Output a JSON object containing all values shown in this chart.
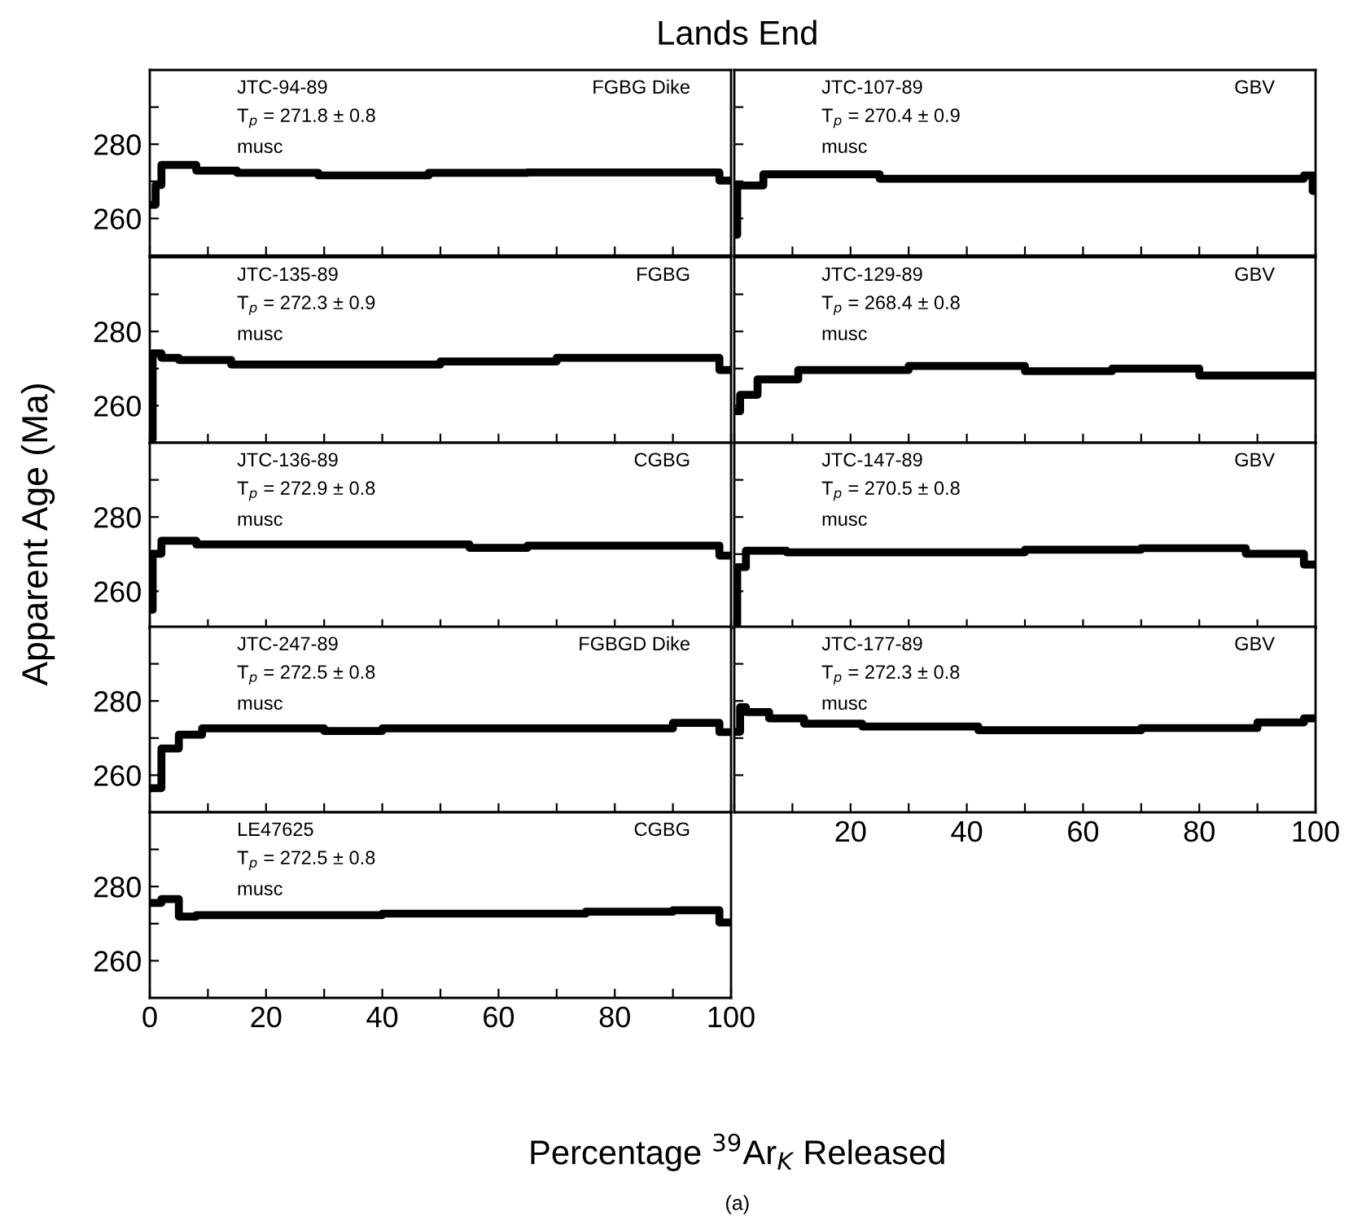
{
  "chart_data": [
    {
      "type": "step",
      "title": "Lands End",
      "ylabel": "Apparent Age (Ma)",
      "annotations": [
        "JTC-94-89",
        "T$_{p}$ = 271.8 ± 0.8",
        "musc",
        "FGBG Dike"
      ],
      "tick_labels": "y",
      "x": [
        0,
        1,
        2,
        8,
        15,
        29,
        48,
        65,
        98,
        100
      ],
      "values": [
        263.7,
        269,
        274.4,
        272.9,
        272.3,
        271.6,
        272.3,
        272.4,
        270.2,
        270.2
      ],
      "color": "#000000",
      "xlim": [
        0,
        100
      ],
      "xticks": [
        {
          "value": 0,
          "label": null
        },
        {
          "value": 10,
          "label": null
        },
        {
          "value": 20,
          "label": null
        },
        {
          "value": 30,
          "label": null
        },
        {
          "value": 40,
          "label": null
        },
        {
          "value": 50,
          "label": null
        },
        {
          "value": 60,
          "label": null
        },
        {
          "value": 70,
          "label": null
        },
        {
          "value": 80,
          "label": null
        },
        {
          "value": 90,
          "label": null
        },
        {
          "value": 100,
          "label": null
        }
      ],
      "ylim": [
        250,
        300
      ],
      "yticks": [
        {
          "value": 260,
          "label": "260"
        },
        {
          "value": 270,
          "label": null
        },
        {
          "value": 280,
          "label": "280"
        },
        {
          "value": 290,
          "label": null
        }
      ]
    },
    {
      "type": "step",
      "annotations": [
        "JTC-107-89",
        "T$_{p}$ = 270.4 ± 0.9",
        "musc",
        "GBV"
      ],
      "tick_labels": false,
      "x": [
        0,
        0.5,
        5,
        25,
        98,
        99.5,
        100
      ],
      "values": [
        255.6,
        268.9,
        271.9,
        270.7,
        271.6,
        267.4,
        267.4
      ],
      "color": "#000000",
      "xlim": [
        0,
        100
      ],
      "xticks": [
        {
          "value": 0,
          "label": null
        },
        {
          "value": 10,
          "label": null
        },
        {
          "value": 20,
          "label": null
        },
        {
          "value": 30,
          "label": null
        },
        {
          "value": 40,
          "label": null
        },
        {
          "value": 50,
          "label": null
        },
        {
          "value": 60,
          "label": null
        },
        {
          "value": 70,
          "label": null
        },
        {
          "value": 80,
          "label": null
        },
        {
          "value": 90,
          "label": null
        },
        {
          "value": 100,
          "label": null
        }
      ],
      "ylim": [
        250,
        300
      ],
      "yticks": [
        {
          "value": 260,
          "label": null
        },
        {
          "value": 270,
          "label": null
        },
        {
          "value": 280,
          "label": null
        },
        {
          "value": 290,
          "label": null
        }
      ]
    },
    {
      "type": "step",
      "annotations": [
        "JTC-135-89",
        "T$_{p}$ = 272.3 ± 0.9",
        "musc",
        "FGBG"
      ],
      "tick_labels": "y",
      "x": [
        0,
        0.5,
        2,
        5,
        14,
        50,
        70,
        98,
        100
      ],
      "values": [
        251,
        274.1,
        272.9,
        272.3,
        271.1,
        271.9,
        272.9,
        269.6,
        269.6
      ],
      "color": "#000000",
      "xlim": [
        0,
        100
      ],
      "xticks": [
        {
          "value": 0,
          "label": null
        },
        {
          "value": 10,
          "label": null
        },
        {
          "value": 20,
          "label": null
        },
        {
          "value": 30,
          "label": null
        },
        {
          "value": 40,
          "label": null
        },
        {
          "value": 50,
          "label": null
        },
        {
          "value": 60,
          "label": null
        },
        {
          "value": 70,
          "label": null
        },
        {
          "value": 80,
          "label": null
        },
        {
          "value": 90,
          "label": null
        },
        {
          "value": 100,
          "label": null
        }
      ],
      "ylim": [
        250,
        300
      ],
      "yticks": [
        {
          "value": 260,
          "label": "260"
        },
        {
          "value": 270,
          "label": null
        },
        {
          "value": 280,
          "label": "280"
        },
        {
          "value": 290,
          "label": null
        }
      ]
    },
    {
      "type": "step",
      "annotations": [
        "JTC-129-89",
        "T$_{p}$ = 268.4 ± 0.8",
        "musc",
        "GBV"
      ],
      "tick_labels": false,
      "x": [
        0,
        1,
        4,
        11,
        30,
        50,
        65,
        80,
        100
      ],
      "values": [
        258.5,
        262.9,
        267.1,
        269.6,
        270.7,
        269.3,
        270,
        268.1,
        268.1
      ],
      "color": "#000000",
      "xlim": [
        0,
        100
      ],
      "xticks": [
        {
          "value": 0,
          "label": null
        },
        {
          "value": 10,
          "label": null
        },
        {
          "value": 20,
          "label": null
        },
        {
          "value": 30,
          "label": null
        },
        {
          "value": 40,
          "label": null
        },
        {
          "value": 50,
          "label": null
        },
        {
          "value": 60,
          "label": null
        },
        {
          "value": 70,
          "label": null
        },
        {
          "value": 80,
          "label": null
        },
        {
          "value": 90,
          "label": null
        },
        {
          "value": 100,
          "label": null
        }
      ],
      "ylim": [
        250,
        300
      ],
      "yticks": [
        {
          "value": 260,
          "label": null
        },
        {
          "value": 270,
          "label": null
        },
        {
          "value": 280,
          "label": null
        },
        {
          "value": 290,
          "label": null
        }
      ]
    },
    {
      "type": "step",
      "annotations": [
        "JTC-136-89",
        "T$_{p}$ = 272.9 ± 0.8",
        "musc",
        "CGBG"
      ],
      "tick_labels": "y",
      "x": [
        0,
        0.5,
        2,
        8,
        55,
        65,
        98,
        100
      ],
      "values": [
        255,
        270.1,
        273.6,
        272.6,
        271.7,
        272.3,
        269.6,
        269.6
      ],
      "color": "#000000",
      "xlim": [
        0,
        100
      ],
      "xticks": [
        {
          "value": 0,
          "label": null
        },
        {
          "value": 10,
          "label": null
        },
        {
          "value": 20,
          "label": null
        },
        {
          "value": 30,
          "label": null
        },
        {
          "value": 40,
          "label": null
        },
        {
          "value": 50,
          "label": null
        },
        {
          "value": 60,
          "label": null
        },
        {
          "value": 70,
          "label": null
        },
        {
          "value": 80,
          "label": null
        },
        {
          "value": 90,
          "label": null
        },
        {
          "value": 100,
          "label": null
        }
      ],
      "ylim": [
        250,
        300
      ],
      "yticks": [
        {
          "value": 260,
          "label": "260"
        },
        {
          "value": 270,
          "label": null
        },
        {
          "value": 280,
          "label": "280"
        },
        {
          "value": 290,
          "label": null
        }
      ]
    },
    {
      "type": "step",
      "annotations": [
        "JTC-147-89",
        "T$_{p}$ = 270.5 ± 0.8",
        "musc",
        "GBV"
      ],
      "tick_labels": false,
      "x": [
        0,
        0.5,
        2,
        9,
        50,
        70,
        88,
        98,
        100
      ],
      "values": [
        251,
        266.5,
        270.9,
        270.5,
        271.2,
        271.6,
        270.1,
        267.2,
        267.2
      ],
      "color": "#000000",
      "xlim": [
        0,
        100
      ],
      "xticks": [
        {
          "value": 0,
          "label": null
        },
        {
          "value": 10,
          "label": null
        },
        {
          "value": 20,
          "label": null
        },
        {
          "value": 30,
          "label": null
        },
        {
          "value": 40,
          "label": null
        },
        {
          "value": 50,
          "label": null
        },
        {
          "value": 60,
          "label": null
        },
        {
          "value": 70,
          "label": null
        },
        {
          "value": 80,
          "label": null
        },
        {
          "value": 90,
          "label": null
        },
        {
          "value": 100,
          "label": null
        }
      ],
      "ylim": [
        250,
        300
      ],
      "yticks": [
        {
          "value": 260,
          "label": null
        },
        {
          "value": 270,
          "label": null
        },
        {
          "value": 280,
          "label": null
        },
        {
          "value": 290,
          "label": null
        }
      ]
    },
    {
      "type": "step",
      "annotations": [
        "JTC-247-89",
        "T$_{p}$ = 272.5 ± 0.8",
        "musc",
        "FGBGD Dike"
      ],
      "tick_labels": "y",
      "x": [
        0,
        2,
        5,
        9,
        30,
        40,
        90,
        98,
        100
      ],
      "values": [
        256.5,
        267.2,
        270.9,
        272.6,
        271.9,
        272.6,
        274.1,
        271.6,
        271.6
      ],
      "color": "#000000",
      "xlim": [
        0,
        100
      ],
      "xticks": [
        {
          "value": 0,
          "label": null
        },
        {
          "value": 10,
          "label": null
        },
        {
          "value": 20,
          "label": null
        },
        {
          "value": 30,
          "label": null
        },
        {
          "value": 40,
          "label": null
        },
        {
          "value": 50,
          "label": null
        },
        {
          "value": 60,
          "label": null
        },
        {
          "value": 70,
          "label": null
        },
        {
          "value": 80,
          "label": null
        },
        {
          "value": 90,
          "label": null
        },
        {
          "value": 100,
          "label": null
        }
      ],
      "ylim": [
        250,
        300
      ],
      "yticks": [
        {
          "value": 260,
          "label": "260"
        },
        {
          "value": 270,
          "label": null
        },
        {
          "value": 280,
          "label": "280"
        },
        {
          "value": 290,
          "label": null
        }
      ]
    },
    {
      "type": "step",
      "annotations": [
        "JTC-177-89",
        "T$_{p}$ = 272.3 ± 0.8",
        "musc",
        "GBV"
      ],
      "tick_labels": "x",
      "x": [
        0,
        1,
        2,
        6,
        12,
        22,
        42,
        70,
        90,
        98,
        100
      ],
      "values": [
        271.7,
        278.3,
        277,
        275.3,
        273.9,
        273.1,
        272.1,
        272.7,
        274.2,
        275.3,
        275.3
      ],
      "color": "#000000",
      "xlim": [
        0,
        100
      ],
      "xticks": [
        {
          "value": 0,
          "label": null
        },
        {
          "value": 10,
          "label": null
        },
        {
          "value": 20,
          "label": "20"
        },
        {
          "value": 30,
          "label": null
        },
        {
          "value": 40,
          "label": "40"
        },
        {
          "value": 50,
          "label": null
        },
        {
          "value": 60,
          "label": "60"
        },
        {
          "value": 70,
          "label": null
        },
        {
          "value": 80,
          "label": "80"
        },
        {
          "value": 90,
          "label": null
        },
        {
          "value": 100,
          "label": "100"
        }
      ],
      "ylim": [
        250,
        300
      ],
      "yticks": [
        {
          "value": 260,
          "label": null
        },
        {
          "value": 270,
          "label": null
        },
        {
          "value": 280,
          "label": null
        },
        {
          "value": 290,
          "label": null
        }
      ]
    },
    {
      "type": "step",
      "xlabel": "Percentage $^{39}$Ar$_{K}$ Released",
      "annotations": [
        "LE47625",
        "T$_{p}$ = 272.5 ± 0.8",
        "musc",
        "CGBG",
        "(a)"
      ],
      "x": [
        0,
        2,
        5,
        8,
        40,
        75,
        90,
        98,
        100
      ],
      "values": [
        275.6,
        276.6,
        271.9,
        272.3,
        272.7,
        273.2,
        273.6,
        270.3,
        270.3
      ],
      "color": "#000000",
      "xlim": [
        0,
        100
      ],
      "xticks": [
        {
          "value": 0,
          "label": "0"
        },
        {
          "value": 10,
          "label": null
        },
        {
          "value": 20,
          "label": "20"
        },
        {
          "value": 30,
          "label": null
        },
        {
          "value": 40,
          "label": "40"
        },
        {
          "value": 50,
          "label": null
        },
        {
          "value": 60,
          "label": "60"
        },
        {
          "value": 70,
          "label": null
        },
        {
          "value": 80,
          "label": "80"
        },
        {
          "value": 90,
          "label": null
        },
        {
          "value": 100,
          "label": "100"
        }
      ],
      "ylim": [
        250,
        300
      ],
      "yticks": [
        {
          "value": 260,
          "label": "260"
        },
        {
          "value": 270,
          "label": null
        },
        {
          "value": 280,
          "label": "280"
        },
        {
          "value": 290,
          "label": null
        }
      ]
    }
  ]
}
